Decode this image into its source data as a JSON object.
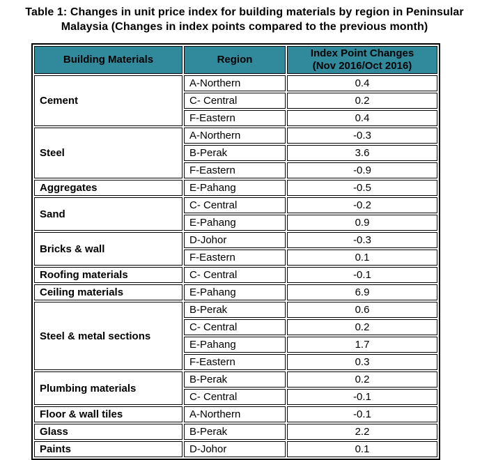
{
  "title": {
    "line1": "Table 1: Changes in unit price index for building materials by region in Peninsular",
    "line2": "Malaysia (Changes in index points compared to the previous month)"
  },
  "colors": {
    "header_bg": "#318A9C",
    "border": "#000000",
    "text": "#000000",
    "background": "#ffffff"
  },
  "table": {
    "headers": [
      "Building Materials",
      "Region",
      "Index Point Changes\n(Nov 2016/Oct 2016)"
    ],
    "groups": [
      {
        "material": "Cement",
        "rows": [
          {
            "region": "A-Northern",
            "change": "0.4"
          },
          {
            "region": "C- Central",
            "change": "0.2"
          },
          {
            "region": "F-Eastern",
            "change": "0.4"
          }
        ]
      },
      {
        "material": "Steel",
        "rows": [
          {
            "region": "A-Northern",
            "change": "-0.3"
          },
          {
            "region": "B-Perak",
            "change": "3.6"
          },
          {
            "region": "F-Eastern",
            "change": "-0.9"
          }
        ]
      },
      {
        "material": "Aggregates",
        "rows": [
          {
            "region": "E-Pahang",
            "change": "-0.5"
          }
        ]
      },
      {
        "material": "Sand",
        "rows": [
          {
            "region": "C- Central",
            "change": "-0.2"
          },
          {
            "region": "E-Pahang",
            "change": "0.9"
          }
        ]
      },
      {
        "material": "Bricks & wall",
        "rows": [
          {
            "region": "D-Johor",
            "change": "-0.3"
          },
          {
            "region": "F-Eastern",
            "change": "0.1"
          }
        ]
      },
      {
        "material": "Roofing materials",
        "rows": [
          {
            "region": "C- Central",
            "change": "-0.1"
          }
        ]
      },
      {
        "material": "Ceiling materials",
        "rows": [
          {
            "region": "E-Pahang",
            "change": "6.9"
          }
        ]
      },
      {
        "material": "Steel & metal sections",
        "rows": [
          {
            "region": "B-Perak",
            "change": "0.6"
          },
          {
            "region": "C- Central",
            "change": "0.2"
          },
          {
            "region": "E-Pahang",
            "change": "1.7"
          },
          {
            "region": "F-Eastern",
            "change": "0.3"
          }
        ]
      },
      {
        "material": "Plumbing materials",
        "rows": [
          {
            "region": "B-Perak",
            "change": "0.2"
          },
          {
            "region": "C- Central",
            "change": "-0.1"
          }
        ]
      },
      {
        "material": "Floor & wall tiles",
        "rows": [
          {
            "region": "A-Northern",
            "change": "-0.1"
          }
        ]
      },
      {
        "material": "Glass",
        "rows": [
          {
            "region": "B-Perak",
            "change": "2.2"
          }
        ]
      },
      {
        "material": "Paints",
        "rows": [
          {
            "region": "D-Johor",
            "change": "0.1"
          }
        ]
      }
    ]
  }
}
